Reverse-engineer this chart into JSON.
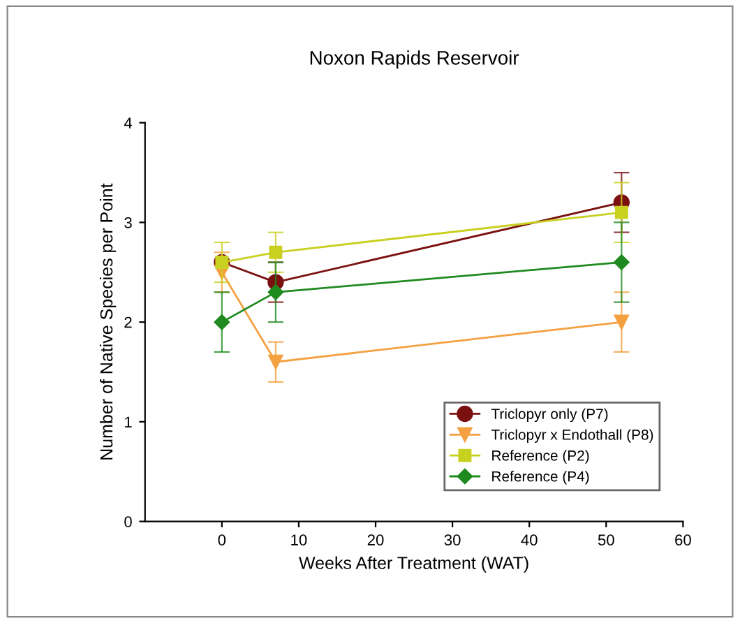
{
  "chart_data": {
    "type": "line",
    "title": "Noxon Rapids Reservoir",
    "xlabel": "Weeks After Treatment (WAT)",
    "ylabel": "Number of Native Species per Point",
    "x": [
      0,
      7,
      52
    ],
    "xlim": [
      -10,
      60
    ],
    "xticks": [
      0,
      10,
      20,
      30,
      40,
      50,
      60
    ],
    "ylim": [
      0,
      4
    ],
    "yticks": [
      0,
      1,
      2,
      3,
      4
    ],
    "legend": "bottom right",
    "grid": false,
    "series": [
      {
        "name": "Triclopyr only (P7)",
        "color": "#7b1010",
        "marker": "circle",
        "values": [
          2.6,
          2.4,
          3.2
        ],
        "errors": [
          null,
          0.2,
          0.3
        ]
      },
      {
        "name": "Triclopyr x Endothall (P8)",
        "color": "#f5a040",
        "marker": "triangle",
        "values": [
          2.5,
          1.6,
          2.0
        ],
        "errors": [
          0.2,
          0.2,
          0.3
        ]
      },
      {
        "name": "Reference (P2)",
        "color": "#c8d020",
        "marker": "square",
        "values": [
          2.6,
          2.7,
          3.1
        ],
        "errors": [
          0.2,
          0.2,
          0.3
        ]
      },
      {
        "name": "Reference (P4)",
        "color": "#1f8a1f",
        "marker": "diamond",
        "values": [
          2.0,
          2.3,
          2.6
        ],
        "errors": [
          0.3,
          0.3,
          0.4
        ]
      }
    ]
  }
}
